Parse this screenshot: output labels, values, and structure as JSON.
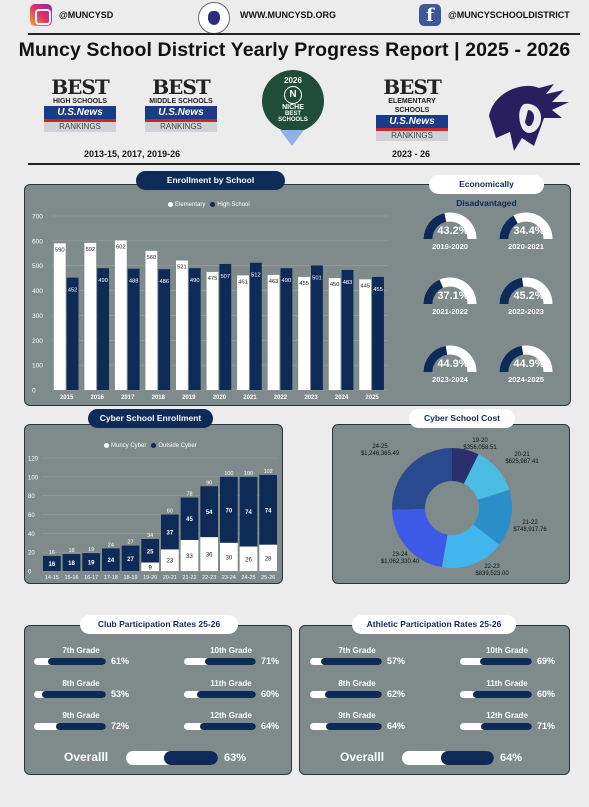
{
  "header": {
    "instagram_handle": "@MUNCYSD",
    "website": "WWW.MUNCYSD.ORG",
    "facebook_handle": "@MUNCYSCHOOLDISTRICT",
    "title": "Muncy School District Yearly Progress Report  |  2025 - 2026"
  },
  "badges": [
    {
      "line1": "BEST",
      "line2": "HIGH SCHOOLS",
      "brand": "U.S.News",
      "line4": "RANKINGS"
    },
    {
      "line1": "BEST",
      "line2": "MIDDLE SCHOOLS",
      "brand": "U.S.News",
      "line4": "RANKINGS"
    },
    {
      "line1": "BEST",
      "line2": "ELEMENTARY SCHOOLS",
      "brand": "U.S.News",
      "line4": "RANKINGS"
    }
  ],
  "niche": {
    "year": "2026",
    "mark": "N",
    "name": "NICHE",
    "line1": "BEST",
    "line2": "SCHOOLS"
  },
  "badge_years": {
    "left": "2013-15, 2017, 2019-26",
    "right": "2023 - 26"
  },
  "colors": {
    "navy": "#0e2a57",
    "panel": "#7f8a8b",
    "white": "#ffffff"
  },
  "enrollment": {
    "title": "Enrollment by School",
    "chart_data": {
      "type": "bar",
      "categories": [
        "2015",
        "2016",
        "2017",
        "2018",
        "2019",
        "2020",
        "2021",
        "2022",
        "2023",
        "2024",
        "2025"
      ],
      "series": [
        {
          "name": "Elementary",
          "values": [
            590,
            592,
            602,
            560,
            521,
            475,
            461,
            463,
            455,
            450,
            445
          ]
        },
        {
          "name": "High School",
          "values": [
            452,
            490,
            488,
            486,
            490,
            507,
            512,
            490,
            501,
            483,
            455
          ]
        }
      ],
      "yticks": [
        "0",
        "100",
        "200",
        "300",
        "400",
        "500",
        "600",
        "700"
      ],
      "ylim": [
        0,
        700
      ]
    }
  },
  "econ": {
    "title": "Economically Disadvantaged",
    "items": [
      {
        "label": "2019-2020",
        "value": 43.2,
        "text": "43.2%"
      },
      {
        "label": "2020-2021",
        "value": 34.4,
        "text": "34.4%"
      },
      {
        "label": "2021-2022",
        "value": 37.1,
        "text": "37.1%"
      },
      {
        "label": "2022-2023",
        "value": 45.2,
        "text": "45.2%"
      },
      {
        "label": "2023-2024",
        "value": 44.9,
        "text": "44.9%"
      },
      {
        "label": "2024-2025",
        "value": 44.9,
        "text": "44.9%"
      }
    ]
  },
  "cyber_enrollment": {
    "title": "Cyber School Enrollment",
    "chart_data": {
      "type": "bar",
      "stacked": true,
      "categories": [
        "14-15",
        "15-16",
        "16-17",
        "17-18",
        "18-19",
        "19-20",
        "20-21",
        "21-22",
        "22-23",
        "23-24",
        "24-25",
        "25-26"
      ],
      "series": [
        {
          "name": "Muncy Cyber",
          "values": [
            0,
            0,
            0,
            0,
            0,
            9,
            23,
            33,
            36,
            30,
            26,
            28
          ]
        },
        {
          "name": "Outside Cyber",
          "values": [
            16,
            18,
            19,
            24,
            27,
            25,
            37,
            45,
            54,
            70,
            74,
            74
          ]
        }
      ],
      "totals": [
        16,
        18,
        19,
        24,
        27,
        34,
        60,
        78,
        90,
        100,
        100,
        102
      ],
      "yticks": [
        "0",
        "20",
        "40",
        "60",
        "80",
        "100",
        "120"
      ],
      "ylim": [
        0,
        120
      ]
    }
  },
  "cyber_cost": {
    "title": "Cyber School Cost",
    "chart_data": {
      "type": "pie",
      "donut": true,
      "slices": [
        {
          "label": "19-20",
          "value": 356058.51,
          "text": "$356,058.51",
          "color": "#2b2f6e"
        },
        {
          "label": "20-21",
          "value": 625987.41,
          "text": "$625,987.41",
          "color": "#4bbde3"
        },
        {
          "label": "21-22",
          "value": 748917.76,
          "text": "$748,917.76",
          "color": "#2a8ec9"
        },
        {
          "label": "22-23",
          "value": 839523.0,
          "text": "$839,523.00",
          "color": "#42b5ef"
        },
        {
          "label": "23-24",
          "value": 1062330.4,
          "text": "$1,062,330.40",
          "color": "#3c5ae6"
        },
        {
          "label": "24-25",
          "value": 1246365.49,
          "text": "$1,246,365.49",
          "color": "#2a4a8f"
        }
      ]
    }
  },
  "club": {
    "title": "Club Participation Rates 25-26",
    "items": [
      {
        "label": "7th Grade",
        "value": 61,
        "text": "61%"
      },
      {
        "label": "10th Grade",
        "value": 71,
        "text": "71%"
      },
      {
        "label": "8th Grade",
        "value": 53,
        "text": "53%"
      },
      {
        "label": "11th Grade",
        "value": 60,
        "text": "60%"
      },
      {
        "label": "9th Grade",
        "value": 72,
        "text": "72%"
      },
      {
        "label": "12th Grade",
        "value": 64,
        "text": "64%"
      }
    ],
    "overall": {
      "label": "Overalll",
      "value": 63,
      "text": "63%"
    }
  },
  "athletic": {
    "title": "Athletic Participation Rates 25-26",
    "items": [
      {
        "label": "7th Grade",
        "value": 57,
        "text": "57%"
      },
      {
        "label": "10th Grade",
        "value": 69,
        "text": "69%"
      },
      {
        "label": "8th Grade",
        "value": 62,
        "text": "62%"
      },
      {
        "label": "11th Grade",
        "value": 60,
        "text": "60%"
      },
      {
        "label": "9th Grade",
        "value": 64,
        "text": "64%"
      },
      {
        "label": "12th Grade",
        "value": 71,
        "text": "71%"
      }
    ],
    "overall": {
      "label": "Overalll",
      "value": 64,
      "text": "64%"
    }
  }
}
